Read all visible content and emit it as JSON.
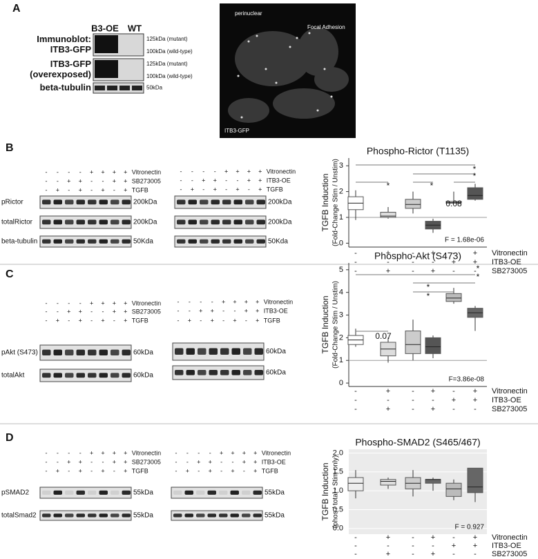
{
  "panel_a": {
    "label": "A",
    "lanes": [
      "B3-OE",
      "WT"
    ],
    "blots": [
      {
        "name_lines": [
          "Immunoblot:",
          "ITB3-GFP"
        ],
        "sizes": [
          "125kDa (mutant)",
          "100kDa (wild-type)"
        ]
      },
      {
        "name_lines": [
          "ITB3-GFP",
          "(overexposed)"
        ],
        "sizes": [
          "125kDa (mutant)",
          "100kDa (wild-type)"
        ]
      },
      {
        "name_lines": [
          "beta-tubulin"
        ],
        "sizes": [
          "50kDa"
        ]
      }
    ],
    "image_labels": [
      "perinuclear",
      "Focal Adhesion",
      "ITB3-GFP"
    ]
  },
  "panels": [
    {
      "label": "B",
      "blots": [
        {
          "conditions": [
            {
              "name": "Vitronectin",
              "signs": [
                "-",
                "-",
                "-",
                "-",
                "+",
                "+",
                "+",
                "+"
              ]
            },
            {
              "name": "SB273005",
              "signs": [
                "-",
                "-",
                "+",
                "+",
                "-",
                "-",
                "+",
                "+"
              ]
            },
            {
              "name": "TGFB",
              "signs": [
                "-",
                "+",
                "-",
                "+",
                "-",
                "+",
                "-",
                "+"
              ]
            }
          ],
          "rows": [
            {
              "name": "pRictor",
              "size": "200kDa"
            },
            {
              "name": "totalRictor",
              "size": "200kDa"
            },
            {
              "name": "beta-tubulin",
              "size": "50Kda"
            }
          ]
        },
        {
          "conditions": [
            {
              "name": "Vitronectin",
              "signs": [
                "-",
                "-",
                "-",
                "-",
                "+",
                "+",
                "+",
                "+"
              ]
            },
            {
              "name": "ITB3-OE",
              "signs": [
                "-",
                "-",
                "+",
                "+",
                "-",
                "-",
                "+",
                "+"
              ]
            },
            {
              "name": "TGFB",
              "signs": [
                "-",
                "+",
                "-",
                "+",
                "-",
                "+",
                "-",
                "+"
              ]
            }
          ],
          "rows": [
            {
              "size": "200kDa"
            },
            {
              "size": "200kDa"
            },
            {
              "size": "50Kda"
            }
          ]
        }
      ],
      "chart": {
        "type": "box",
        "title": "Phospho-Rictor (T1135)",
        "y_label": [
          "TGFB Induction",
          "(Fold-Change Stim / Unstim)"
        ],
        "ylim": [
          -0.15,
          3.3
        ],
        "yticks": [
          0,
          1,
          2,
          3
        ],
        "reference_line": 1,
        "boxes": [
          {
            "min": 0.9,
            "q1": 1.3,
            "median": 1.55,
            "q3": 1.8,
            "max": 2.05,
            "color": "#ffffff"
          },
          {
            "min": 0.95,
            "q1": 1.0,
            "median": 1.05,
            "q3": 1.2,
            "max": 1.4,
            "color": "#dddddd"
          },
          {
            "min": 1.15,
            "q1": 1.35,
            "median": 1.5,
            "q3": 1.7,
            "max": 2.0,
            "color": "#cccccc"
          },
          {
            "min": 0.4,
            "q1": 0.55,
            "median": 0.7,
            "q3": 0.85,
            "max": 0.95,
            "color": "#555555"
          },
          {
            "min": 1.55,
            "q1": 1.55,
            "median": 1.58,
            "q3": 1.62,
            "max": 2.0,
            "color": "#eeeeee"
          },
          {
            "min": 1.65,
            "q1": 1.7,
            "median": 1.85,
            "q3": 2.15,
            "max": 2.3,
            "color": "#555555"
          }
        ],
        "conditions": [
          {
            "name": "Vitronectin",
            "signs": [
              "-",
              "+",
              "-",
              "+",
              "-",
              "+"
            ]
          },
          {
            "name": "ITB3-OE",
            "signs": [
              "-",
              "-",
              "-",
              "-",
              "+",
              "+"
            ]
          },
          {
            "name": "SB273005",
            "signs": [
              "-",
              "+",
              "-",
              "+",
              "-",
              "-"
            ]
          }
        ],
        "annotations": [
          "*",
          "*",
          "0.08",
          "*",
          "*"
        ],
        "stat": "F = 1.68e-06"
      }
    },
    {
      "label": "C",
      "blots": [
        {
          "conditions": [
            {
              "name": "Vitronectin",
              "signs": [
                "-",
                "-",
                "-",
                "-",
                "+",
                "+",
                "+",
                "+"
              ]
            },
            {
              "name": "SB273005",
              "signs": [
                "-",
                "-",
                "+",
                "+",
                "-",
                "-",
                "+",
                "+"
              ]
            },
            {
              "name": "TGFB",
              "signs": [
                "-",
                "+",
                "-",
                "+",
                "-",
                "+",
                "-",
                "+"
              ]
            }
          ],
          "rows": [
            {
              "name": "pAkt (S473)",
              "size": "60kDa"
            },
            {
              "name": "totalAkt",
              "size": "60kDa"
            }
          ]
        },
        {
          "conditions": [
            {
              "name": "Vitronectin",
              "signs": [
                "-",
                "-",
                "-",
                "-",
                "+",
                "+",
                "+",
                "+"
              ]
            },
            {
              "name": "ITB3-OE",
              "signs": [
                "-",
                "-",
                "+",
                "+",
                "-",
                "-",
                "+",
                "+"
              ]
            },
            {
              "name": "TGFB",
              "signs": [
                "-",
                "+",
                "-",
                "+",
                "-",
                "+",
                "-",
                "+"
              ]
            }
          ],
          "rows": [
            {
              "size": "60kDa"
            },
            {
              "size": "60kDa"
            }
          ]
        }
      ],
      "chart": {
        "type": "box",
        "title": "Phospho-Akt (S473)",
        "y_label": [
          "TGFB Induction",
          "(Fold-Change Stim / Unstim)"
        ],
        "ylim": [
          -0.15,
          5.3
        ],
        "yticks": [
          0,
          1,
          2,
          3,
          4,
          5
        ],
        "reference_line": 1,
        "boxes": [
          {
            "min": 1.6,
            "q1": 1.7,
            "median": 1.9,
            "q3": 2.1,
            "max": 2.4,
            "color": "#ffffff"
          },
          {
            "min": 0.9,
            "q1": 1.2,
            "median": 1.5,
            "q3": 1.8,
            "max": 2.0,
            "color": "#dddddd"
          },
          {
            "min": 1.0,
            "q1": 1.3,
            "median": 1.7,
            "q3": 2.3,
            "max": 2.8,
            "color": "#cccccc"
          },
          {
            "min": 1.1,
            "q1": 1.3,
            "median": 1.6,
            "q3": 2.0,
            "max": 2.1,
            "color": "#555555"
          },
          {
            "min": 3.5,
            "q1": 3.6,
            "median": 3.75,
            "q3": 3.95,
            "max": 4.2,
            "color": "#bbbbbb"
          },
          {
            "min": 2.3,
            "q1": 2.9,
            "median": 3.1,
            "q3": 3.3,
            "max": 3.4,
            "color": "#666666"
          }
        ],
        "conditions": [
          {
            "name": "Vitronectin",
            "signs": [
              "-",
              "+",
              "-",
              "+",
              "-",
              "+"
            ]
          },
          {
            "name": "ITB3-OE",
            "signs": [
              "-",
              "-",
              "-",
              "-",
              "+",
              "+"
            ]
          },
          {
            "name": "SB273005",
            "signs": [
              "-",
              "+",
              "-",
              "+",
              "-",
              "-"
            ]
          }
        ],
        "annotations": [
          "0.07",
          "*",
          "*",
          "*",
          "*"
        ],
        "stat": "F=3.86e-08"
      }
    },
    {
      "label": "D",
      "blots": [
        {
          "conditions": [
            {
              "name": "Vitronectin",
              "signs": [
                "-",
                "-",
                "-",
                "-",
                "+",
                "+",
                "+",
                "+"
              ]
            },
            {
              "name": "SB273005",
              "signs": [
                "-",
                "-",
                "+",
                "+",
                "-",
                "-",
                "+",
                "+"
              ]
            },
            {
              "name": "TGFB",
              "signs": [
                "-",
                "+",
                "-",
                "+",
                "-",
                "+",
                "-",
                "+"
              ]
            }
          ],
          "rows": [
            {
              "name": "pSMAD2",
              "size": "55kDa"
            },
            {
              "name": "totalSmad2",
              "size": "55kDa"
            }
          ]
        },
        {
          "conditions": [
            {
              "name": "Vitronectin",
              "signs": [
                "-",
                "-",
                "-",
                "-",
                "+",
                "+",
                "+",
                "+"
              ]
            },
            {
              "name": "ITB3-OE",
              "signs": [
                "-",
                "-",
                "+",
                "+",
                "-",
                "-",
                "+",
                "+"
              ]
            },
            {
              "name": "TGFB",
              "signs": [
                "-",
                "+",
                "-",
                "+",
                "-",
                "+",
                "-",
                "+"
              ]
            }
          ],
          "rows": [
            {
              "size": "55kDa"
            },
            {
              "size": "55kDa"
            }
          ]
        }
      ],
      "chart": {
        "type": "box",
        "title": "Phospho-SMAD2 (S465/467)",
        "y_label": [
          "TGFB Induction",
          "(phos / total - Stim only)"
        ],
        "ylim": [
          -0.15,
          2.1
        ],
        "yticks": [
          {
            "value": 0,
            "label": "0.0"
          },
          0.5,
          {
            "value": 1,
            "label": "1.0"
          },
          1.5,
          {
            "value": 2,
            "label": "2.0"
          }
        ],
        "grid": true,
        "boxes": [
          {
            "min": 0.8,
            "q1": 1.0,
            "median": 1.2,
            "q3": 1.35,
            "max": 1.55,
            "color": "#eeeeee"
          },
          {
            "min": 1.05,
            "q1": 1.15,
            "median": 1.25,
            "q3": 1.3,
            "max": 1.35,
            "color": "#dddddd"
          },
          {
            "min": 0.85,
            "q1": 1.05,
            "median": 1.2,
            "q3": 1.35,
            "max": 1.55,
            "color": "#cccccc"
          },
          {
            "min": 1.0,
            "q1": 1.2,
            "median": 1.3,
            "q3": 1.3,
            "max": 1.35,
            "color": "#666666"
          },
          {
            "min": 0.75,
            "q1": 0.85,
            "median": 1.05,
            "q3": 1.2,
            "max": 1.3,
            "color": "#bbbbbb"
          },
          {
            "min": 0.7,
            "q1": 0.95,
            "median": 1.1,
            "q3": 1.6,
            "max": 1.6,
            "color": "#666666"
          }
        ],
        "conditions": [
          {
            "name": "Vitronectin",
            "signs": [
              "-",
              "+",
              "-",
              "+",
              "-",
              "+"
            ]
          },
          {
            "name": "ITB3-OE",
            "signs": [
              "-",
              "-",
              "-",
              "-",
              "+",
              "+"
            ]
          },
          {
            "name": "SB273005",
            "signs": [
              "-",
              "+",
              "-",
              "+",
              "-",
              "-"
            ]
          }
        ],
        "annotations": [],
        "stat": "F = 0.927"
      }
    }
  ]
}
